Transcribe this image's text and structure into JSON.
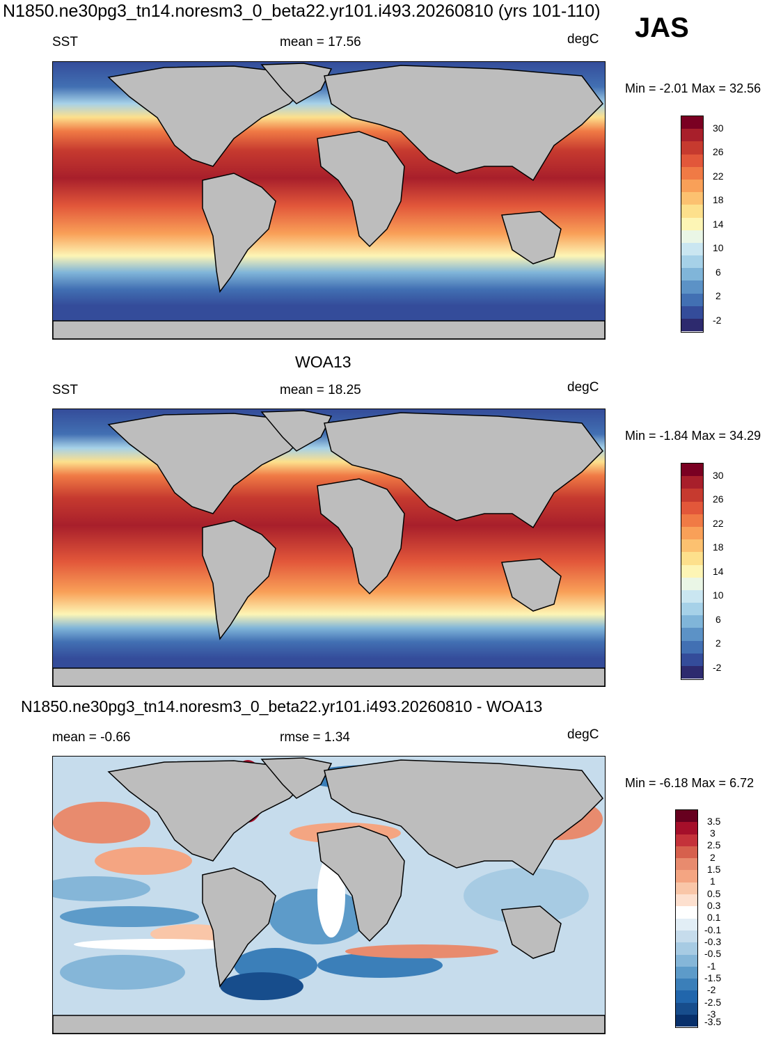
{
  "header": {
    "title": "N1850.ne30pg3_tn14.noresm3_0_beta22.yr101.i493.20260810 (yrs 101-110)",
    "season": "JAS"
  },
  "panels": [
    {
      "heading": "",
      "left_label": "SST",
      "center_label": "mean =  17.56",
      "units": "degC",
      "minmax": "Min =  -2.01 Max =  32.56",
      "colorbar": {
        "colors": [
          "#7a0022",
          "#a81f2b",
          "#c63a2f",
          "#e2573a",
          "#f07a45",
          "#f9a058",
          "#fcc170",
          "#fde08c",
          "#fdf5b5",
          "#eaf6e6",
          "#cae6f1",
          "#a6d1e8",
          "#80b5d9",
          "#5c92c6",
          "#4270b3",
          "#344c9a",
          "#2d2a6e"
        ],
        "ticks": [
          "30",
          "26",
          "22",
          "18",
          "14",
          "10",
          "6",
          "2",
          "-2"
        ]
      }
    },
    {
      "heading": "WOA13",
      "left_label": "SST",
      "center_label": "mean =  18.25",
      "units": "degC",
      "minmax": "Min =  -1.84 Max =  34.29",
      "colorbar": {
        "colors": [
          "#7a0022",
          "#a81f2b",
          "#c63a2f",
          "#e2573a",
          "#f07a45",
          "#f9a058",
          "#fcc170",
          "#fde08c",
          "#fdf5b5",
          "#eaf6e6",
          "#cae6f1",
          "#a6d1e8",
          "#80b5d9",
          "#5c92c6",
          "#4270b3",
          "#344c9a",
          "#2d2a6e"
        ],
        "ticks": [
          "30",
          "26",
          "22",
          "18",
          "14",
          "10",
          "6",
          "2",
          "-2"
        ]
      }
    },
    {
      "heading": "N1850.ne30pg3_tn14.noresm3_0_beta22.yr101.i493.20260810 - WOA13",
      "left_label": "mean =  -0.66",
      "center_label": "rmse =   1.34",
      "units": "degC",
      "minmax": "Min =  -6.18 Max =   6.72",
      "colorbar": {
        "colors": [
          "#67001f",
          "#a50f2a",
          "#c4323a",
          "#d6604d",
          "#e88b6e",
          "#f4a582",
          "#f9c6a8",
          "#fde0cf",
          "#ffffff",
          "#e2eef6",
          "#c6dcec",
          "#a7cbe3",
          "#85b6d8",
          "#5d9bc9",
          "#3b7fb9",
          "#2166ac",
          "#174d8c",
          "#08306b"
        ],
        "ticks": [
          "3.5",
          "3",
          "2.5",
          "2",
          "1.5",
          "1",
          "0.5",
          "0.3",
          "0.1",
          "-0.1",
          "-0.3",
          "-0.5",
          "-1",
          "-1.5",
          "-2",
          "-2.5",
          "-3",
          "-3.5"
        ]
      }
    }
  ],
  "colors": {
    "land": "#bdbdbd",
    "coast": "#000000"
  }
}
